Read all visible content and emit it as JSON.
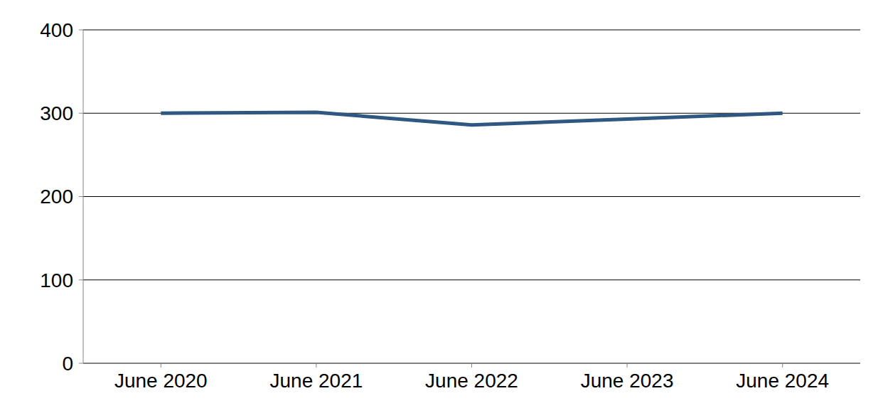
{
  "chart_data": {
    "type": "line",
    "categories": [
      "June 2020",
      "June 2021",
      "June 2022",
      "June 2023",
      "June 2024"
    ],
    "values": [
      300,
      301,
      286,
      293,
      300
    ],
    "color": "#2e5781",
    "ylim": [
      0,
      400
    ],
    "yticks": [
      0,
      100,
      200,
      300,
      400
    ],
    "grid": true
  }
}
